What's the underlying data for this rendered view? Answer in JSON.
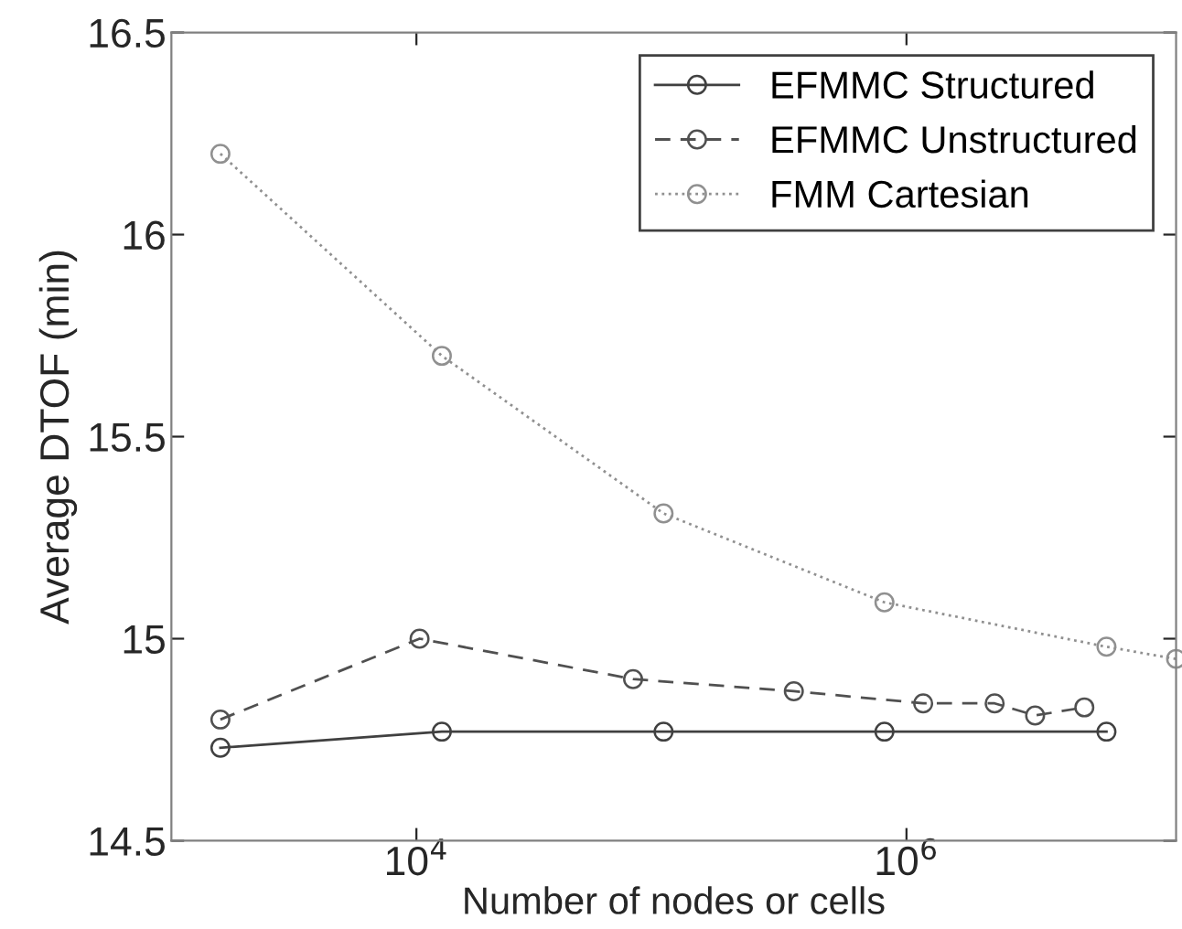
{
  "chart_data": {
    "type": "line",
    "xlabel": "Number of nodes or cells",
    "ylabel": "Average DTOF (min)",
    "log": "x",
    "xlim": [
      1000,
      12600000
    ],
    "xticks": [
      {
        "value": 10000,
        "label": "10$^{4}$"
      },
      {
        "value": 1000000,
        "label": "10$^{6}$"
      }
    ],
    "ylim": [
      14.5,
      16.5
    ],
    "yticks": [
      14.5,
      15,
      15.5,
      16,
      16.5
    ],
    "grid": false,
    "legend": "top right",
    "marker": "circle",
    "series": [
      {
        "name": "EFMMC Structured",
        "color": "#404040",
        "line_style": "solid",
        "x": [
          1585,
          12700,
          102000,
          813000,
          6550000
        ],
        "values": [
          14.73,
          14.77,
          14.77,
          14.77,
          14.77
        ]
      },
      {
        "name": "EFMMC Unstructured",
        "color": "#505050",
        "line_style": "dashed",
        "x": [
          1585,
          10300,
          76600,
          347000,
          1170000,
          2290000,
          3350000,
          5320000
        ],
        "values": [
          14.8,
          15.0,
          14.9,
          14.87,
          14.84,
          14.84,
          14.81,
          14.83
        ]
      },
      {
        "name": "FMM Cartesian",
        "color": "#909090",
        "line_style": "dotted",
        "x": [
          1585,
          12700,
          102000,
          813000,
          6550000,
          12600000
        ],
        "values": [
          16.2,
          15.7,
          15.31,
          15.09,
          14.98,
          14.95
        ]
      }
    ]
  }
}
